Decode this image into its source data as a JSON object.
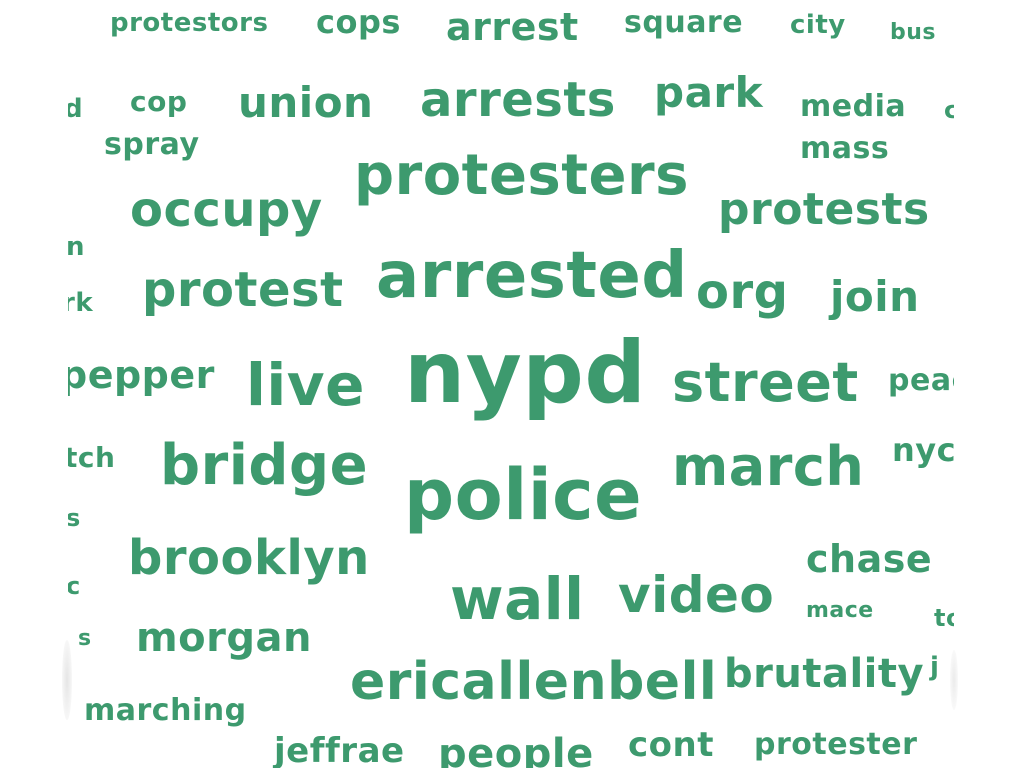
{
  "palette": {
    "word_color": "#3d9a6e",
    "background": "#ffffff"
  },
  "words": [
    {
      "text": "protestors"
    },
    {
      "text": "cops"
    },
    {
      "text": "arrest"
    },
    {
      "text": "square"
    },
    {
      "text": "city"
    },
    {
      "text": "bus"
    },
    {
      "text": "d"
    },
    {
      "text": "cop"
    },
    {
      "text": "union"
    },
    {
      "text": "arrests"
    },
    {
      "text": "park"
    },
    {
      "text": "media"
    },
    {
      "text": "c"
    },
    {
      "text": "spray"
    },
    {
      "text": "mass"
    },
    {
      "text": "protesters"
    },
    {
      "text": "occupy"
    },
    {
      "text": "protests"
    },
    {
      "text": "n"
    },
    {
      "text": "arrested"
    },
    {
      "text": "rk"
    },
    {
      "text": "protest"
    },
    {
      "text": "org"
    },
    {
      "text": "join"
    },
    {
      "text": "pepper"
    },
    {
      "text": "live"
    },
    {
      "text": "nypd"
    },
    {
      "text": "street"
    },
    {
      "text": "peac"
    },
    {
      "text": "tch"
    },
    {
      "text": "bridge"
    },
    {
      "text": "march"
    },
    {
      "text": "nyc"
    },
    {
      "text": "police"
    },
    {
      "text": "s"
    },
    {
      "text": "brooklyn"
    },
    {
      "text": "chase"
    },
    {
      "text": "c"
    },
    {
      "text": "wall"
    },
    {
      "text": "video"
    },
    {
      "text": "mace"
    },
    {
      "text": "to"
    },
    {
      "text": "s"
    },
    {
      "text": "morgan"
    },
    {
      "text": "ericallenbell"
    },
    {
      "text": "brutality"
    },
    {
      "text": "j"
    },
    {
      "text": "marching"
    },
    {
      "text": "jeffrae"
    },
    {
      "text": "people"
    },
    {
      "text": "cont"
    },
    {
      "text": "protester"
    }
  ]
}
